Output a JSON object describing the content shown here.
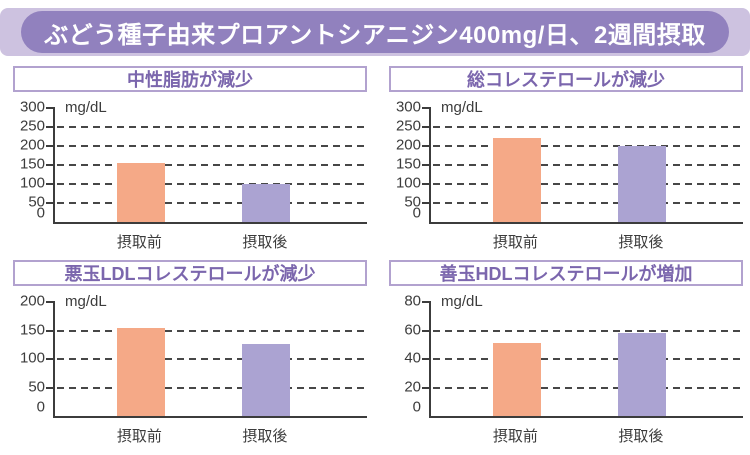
{
  "header": {
    "title": "ぶどう種子由来プロアントシアニジン400mg/日、2週間摂取"
  },
  "colors": {
    "header_band": "#cdc2e0",
    "header_pill": "#9181be",
    "panel_title_text": "#7b66ad",
    "panel_border": "#b2a2cf",
    "bar_before": "#f5a987",
    "bar_after": "#aba3d2",
    "axis": "#3c3c3c"
  },
  "chart_data": [
    {
      "type": "bar",
      "title": "中性脂肪が減少",
      "unit": "mg/dL",
      "categories": [
        "摂取前",
        "摂取後"
      ],
      "values": [
        155,
        100
      ],
      "ylim": [
        0,
        300
      ],
      "yticks": [
        0,
        50,
        100,
        150,
        200,
        250,
        300
      ],
      "grid": "horizontal-dashed",
      "legend": "none"
    },
    {
      "type": "bar",
      "title": "総コレステロールが減少",
      "unit": "mg/dL",
      "categories": [
        "摂取前",
        "摂取後"
      ],
      "values": [
        220,
        200
      ],
      "ylim": [
        0,
        300
      ],
      "yticks": [
        0,
        50,
        100,
        150,
        200,
        250,
        300
      ],
      "grid": "horizontal-dashed",
      "legend": "none"
    },
    {
      "type": "bar",
      "title": "悪玉LDLコレステロールが減少",
      "unit": "mg/dL",
      "categories": [
        "摂取前",
        "摂取後"
      ],
      "values": [
        155,
        127
      ],
      "ylim": [
        0,
        200
      ],
      "yticks": [
        0,
        50,
        100,
        150,
        200
      ],
      "grid": "horizontal-dashed",
      "legend": "none"
    },
    {
      "type": "bar",
      "title": "善玉HDLコレステロールが増加",
      "unit": "mg/dL",
      "categories": [
        "摂取前",
        "摂取後"
      ],
      "values": [
        51,
        58
      ],
      "ylim": [
        0,
        80
      ],
      "yticks": [
        0,
        20,
        40,
        60,
        80
      ],
      "grid": "horizontal-dashed",
      "legend": "none"
    }
  ]
}
